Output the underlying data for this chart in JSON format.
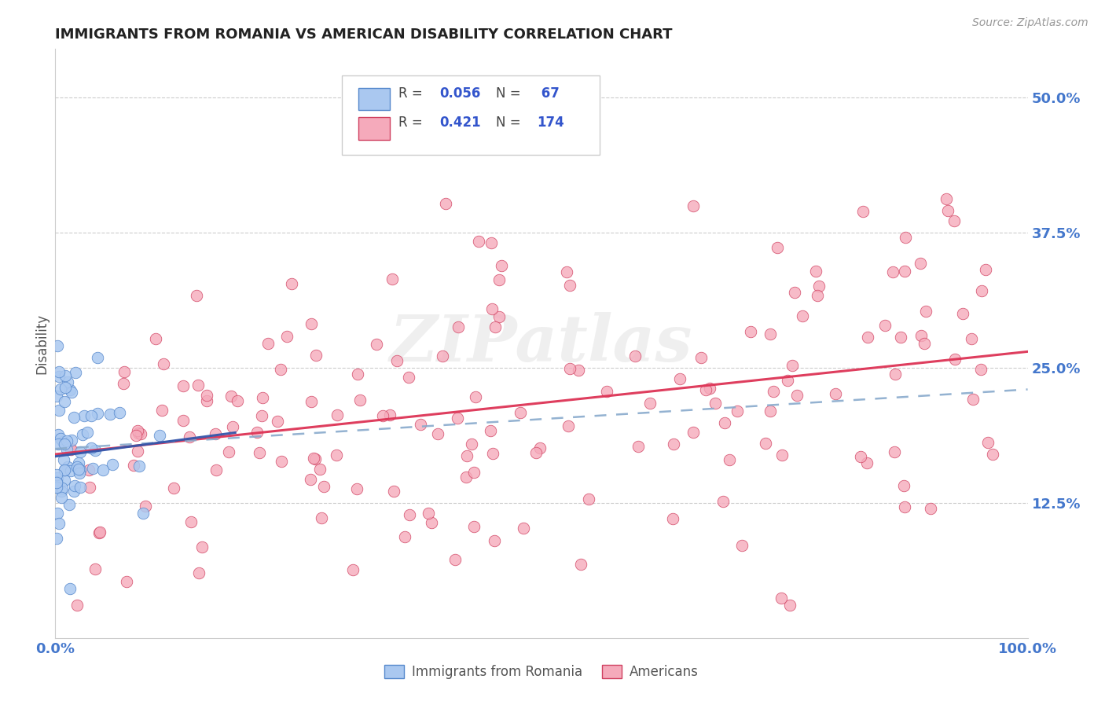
{
  "title": "IMMIGRANTS FROM ROMANIA VS AMERICAN DISABILITY CORRELATION CHART",
  "source": "Source: ZipAtlas.com",
  "ylabel": "Disability",
  "ytick_labels": [
    "12.5%",
    "25.0%",
    "37.5%",
    "50.0%"
  ],
  "ytick_values": [
    0.125,
    0.25,
    0.375,
    0.5
  ],
  "xlim": [
    0.0,
    1.0
  ],
  "ylim": [
    0.0,
    0.545
  ],
  "blue_color": "#aac8f0",
  "blue_edge_color": "#5588cc",
  "pink_color": "#f5aabb",
  "pink_edge_color": "#d04060",
  "trend_blue_solid_color": "#3355aa",
  "trend_pink_solid_color": "#dd3355",
  "trend_blue_dash_color": "#88aacc",
  "legend_label_blue": "Immigrants from Romania",
  "legend_label_pink": "Americans",
  "watermark": "ZIPatlas",
  "R_color": "#3355cc",
  "label_color": "#333333",
  "tick_color": "#4477cc"
}
